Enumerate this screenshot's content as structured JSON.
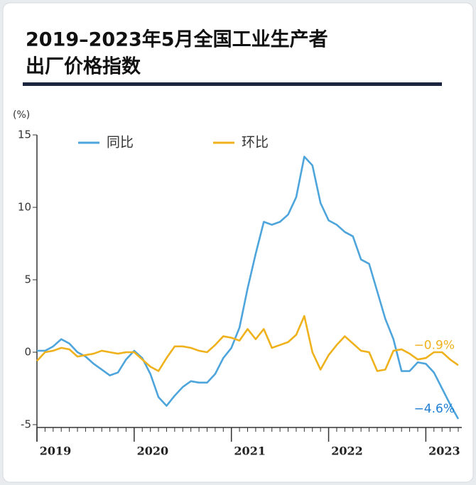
{
  "chart_data": {
    "type": "line",
    "title": [
      "2019–2023年5月全国工业生产者",
      "出厂价格指数"
    ],
    "y_label": "(%)",
    "x": [
      2019,
      2019.0833,
      2019.1667,
      2019.25,
      2019.3333,
      2019.4167,
      2019.5,
      2019.5833,
      2019.6667,
      2019.75,
      2019.8333,
      2019.9167,
      2020,
      2020.0833,
      2020.1667,
      2020.25,
      2020.3333,
      2020.4167,
      2020.5,
      2020.5833,
      2020.6667,
      2020.75,
      2020.8333,
      2020.9167,
      2021,
      2021.0833,
      2021.1667,
      2021.25,
      2021.3333,
      2021.4167,
      2021.5,
      2021.5833,
      2021.6667,
      2021.75,
      2021.8333,
      2021.9167,
      2022,
      2022.0833,
      2022.1667,
      2022.25,
      2022.3333,
      2022.4167,
      2022.5,
      2022.5833,
      2022.6667,
      2022.75,
      2022.8333,
      2022.9167,
      2023,
      2023.0833,
      2023.1667,
      2023.25,
      2023.3333
    ],
    "series": [
      {
        "name": "同比",
        "color": "#4ea5dc",
        "label_color": "#1f7fd4",
        "end_label": "−4.6%",
        "values": [
          0.1,
          0.1,
          0.4,
          0.9,
          0.6,
          0.0,
          -0.3,
          -0.8,
          -1.2,
          -1.6,
          -1.4,
          -0.5,
          0.1,
          -0.4,
          -1.5,
          -3.1,
          -3.7,
          -3.0,
          -2.4,
          -2.0,
          -2.1,
          -2.1,
          -1.5,
          -0.4,
          0.3,
          1.7,
          4.4,
          6.8,
          9.0,
          8.8,
          9.0,
          9.5,
          10.7,
          13.5,
          12.9,
          10.3,
          9.1,
          8.8,
          8.3,
          8.0,
          6.4,
          6.1,
          4.2,
          2.3,
          0.9,
          -1.3,
          -1.3,
          -0.7,
          -0.8,
          -1.4,
          -2.5,
          -3.6,
          -4.6
        ]
      },
      {
        "name": "环比",
        "color": "#efb11c",
        "label_color": "#efb11c",
        "end_label": "−0.9%",
        "values": [
          -0.6,
          0.0,
          0.1,
          0.3,
          0.2,
          -0.3,
          -0.2,
          -0.1,
          0.1,
          0.0,
          -0.1,
          0.0,
          0.0,
          -0.5,
          -1.0,
          -1.3,
          -0.4,
          0.4,
          0.4,
          0.3,
          0.1,
          0.0,
          0.5,
          1.1,
          1.0,
          0.8,
          1.6,
          0.9,
          1.6,
          0.3,
          0.5,
          0.7,
          1.2,
          2.5,
          0.0,
          -1.2,
          -0.2,
          0.5,
          1.1,
          0.6,
          0.1,
          0.0,
          -1.3,
          -1.2,
          0.1,
          0.2,
          -0.1,
          -0.5,
          -0.4,
          0.0,
          0.0,
          -0.5,
          -0.9
        ]
      }
    ],
    "xlim": [
      2019,
      2023.3333
    ],
    "xticks": [
      2019,
      2020,
      2021,
      2022,
      2023
    ],
    "ylim": [
      -5,
      15
    ],
    "yticks": [
      -5,
      0,
      5,
      10,
      15
    ]
  }
}
